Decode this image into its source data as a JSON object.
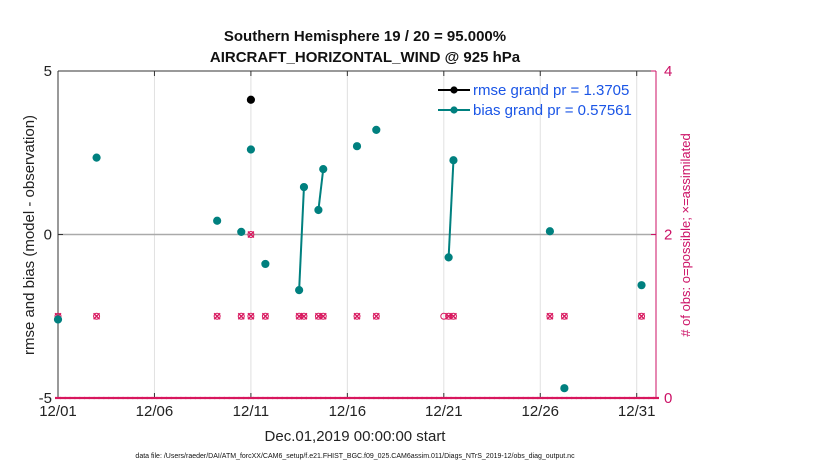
{
  "chart_data": {
    "type": "line",
    "title": "Southern Hemisphere 19 / 20 = 95.000%",
    "subtitle": "AIRCRAFT_HORIZONTAL_WIND @ 925 hPa",
    "xlabel": "Dec.01,2019 00:00:00 start",
    "ylabel": "rmse and bias (model - observation)",
    "y2label": "# of obs: o=possible; ×=assimilated",
    "footer": "data file: /Users/raeder/DAI/ATM_forcXX/CAM6_setup/f.e21.FHIST_BGC.f09_025.CAM6assim.011/Diags_NTrS_2019-12/obs_diag_output.nc",
    "xlim": [
      1,
      32
    ],
    "ylim": [
      -5,
      5
    ],
    "y2lim": [
      0,
      4
    ],
    "x_ticks": [
      1,
      6,
      11,
      16,
      21,
      26,
      31
    ],
    "x_tick_labels": [
      "12/01",
      "12/06",
      "12/11",
      "12/16",
      "12/21",
      "12/26",
      "12/31"
    ],
    "y_ticks": [
      -5,
      0,
      5
    ],
    "y_tick_labels": [
      "-5",
      "0",
      "5"
    ],
    "y2_ticks": [
      0,
      2,
      4
    ],
    "y2_tick_labels": [
      "0",
      "2",
      "4"
    ],
    "zero_line": 0,
    "colors": {
      "rmse": "#000000",
      "bias": "#00807f",
      "obs": "#d8175e",
      "axis_right": "#cc1166",
      "legend_text": "#1a55e6",
      "grid": "#e0e0e0",
      "zero": "#aaaaaa"
    },
    "series": [
      {
        "name": "rmse",
        "legend": "rmse grand pr = 1.3705",
        "points": [
          [
            11.0,
            4.12
          ]
        ]
      },
      {
        "name": "bias",
        "legend": "bias grand pr = 0.57561",
        "points": [
          [
            1.0,
            -2.6
          ],
          [
            3.0,
            2.35
          ],
          [
            9.25,
            0.42
          ],
          [
            10.5,
            0.08
          ],
          [
            11.0,
            2.6
          ],
          [
            11.75,
            -0.9
          ],
          [
            13.5,
            -1.7
          ],
          [
            13.75,
            1.45
          ],
          [
            14.5,
            0.75
          ],
          [
            14.75,
            2.0
          ],
          [
            16.5,
            2.7
          ],
          [
            17.5,
            3.2
          ],
          [
            21.25,
            -0.7
          ],
          [
            21.5,
            2.27
          ],
          [
            26.5,
            0.1
          ],
          [
            27.25,
            -4.7
          ],
          [
            31.25,
            -1.55
          ]
        ],
        "segments": [
          [
            [
              13.5,
              -1.7
            ],
            [
              13.75,
              1.45
            ]
          ],
          [
            [
              14.5,
              0.75
            ],
            [
              14.75,
              2.0
            ]
          ],
          [
            [
              21.25,
              -0.7
            ],
            [
              21.5,
              2.27
            ]
          ]
        ]
      },
      {
        "name": "obs_count_possible",
        "axis": "right",
        "marker": "o",
        "points_at_one": [
          1.0,
          3.0,
          9.25,
          10.5,
          11.0,
          11.75,
          13.5,
          13.75,
          14.5,
          14.75,
          16.5,
          17.5,
          21.0,
          21.25,
          21.5,
          26.5,
          27.25,
          31.25
        ]
      },
      {
        "name": "obs_count_assimilated",
        "axis": "right",
        "marker": "x",
        "points_at_one": [
          1.0,
          3.0,
          9.25,
          10.5,
          11.0,
          11.75,
          13.5,
          13.75,
          14.5,
          14.75,
          16.5,
          17.5,
          21.25,
          21.5,
          26.5,
          27.25,
          31.25
        ],
        "points_at_two": [
          11.0
        ]
      }
    ]
  }
}
